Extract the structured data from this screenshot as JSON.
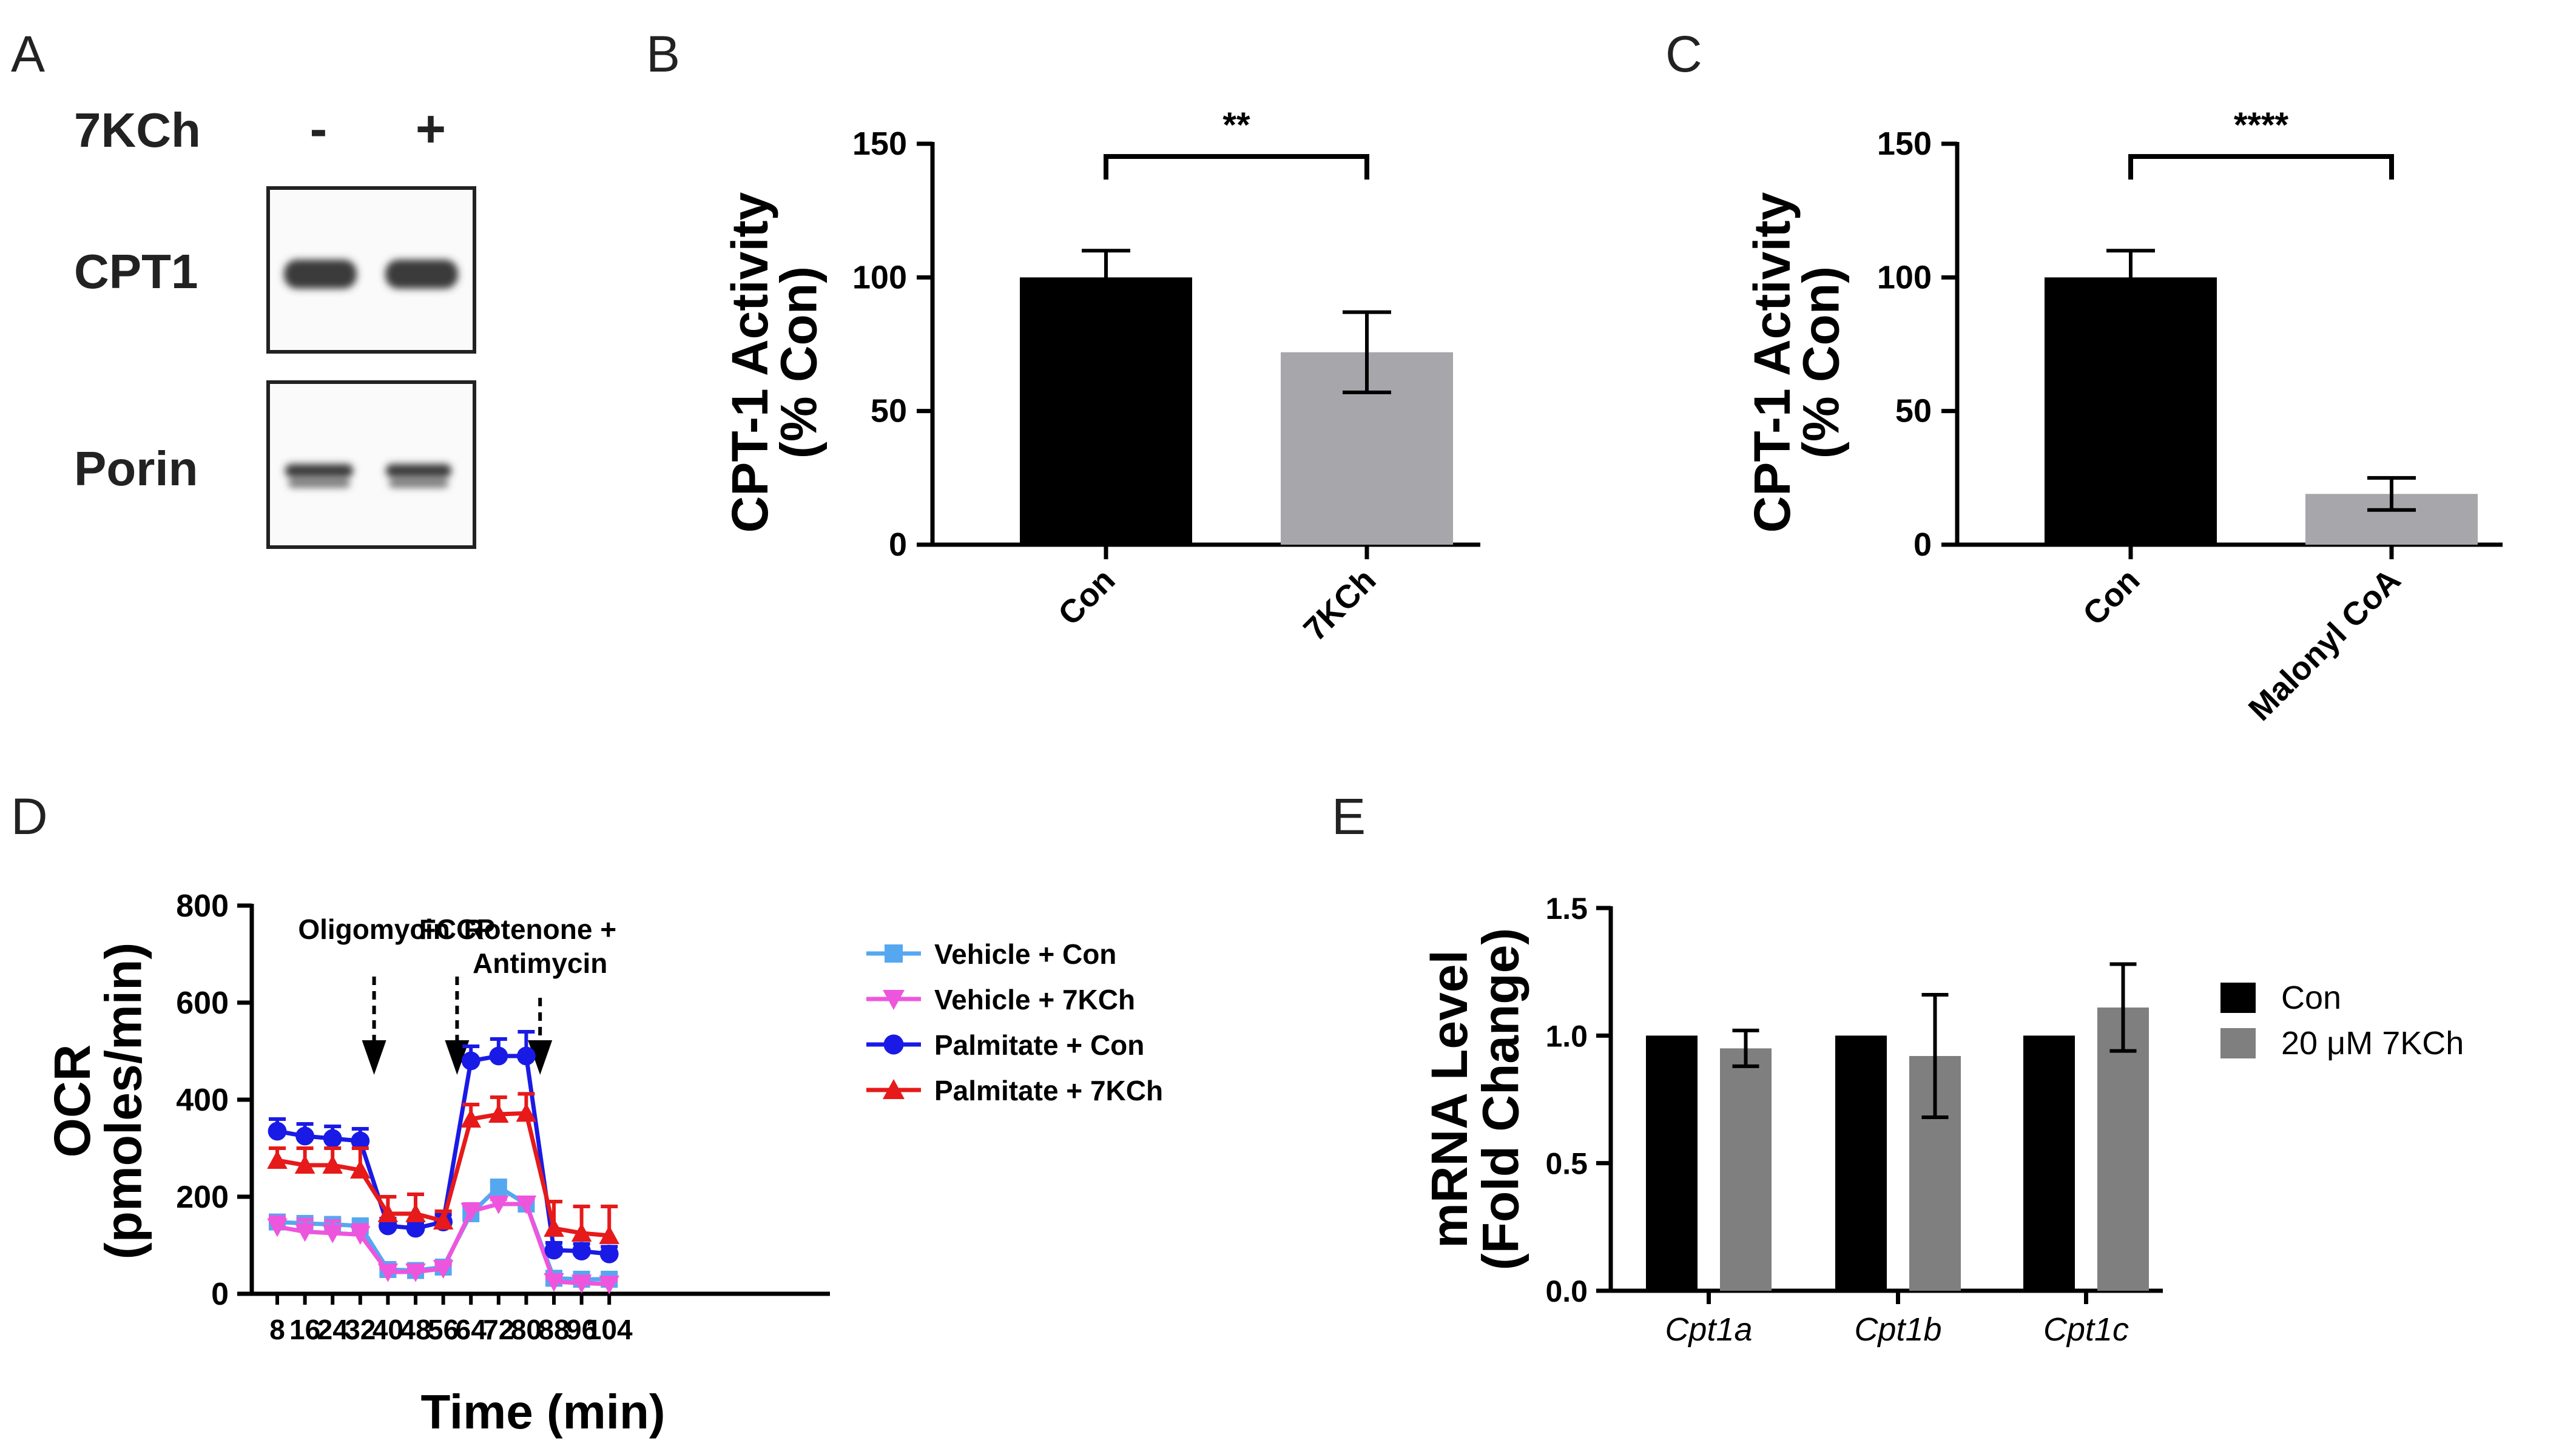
{
  "panel_labels": {
    "a": "A",
    "b": "B",
    "c": "C",
    "d": "D",
    "e": "E"
  },
  "western_blot": {
    "treatment_label": "7KCh",
    "minus": "-",
    "plus": "+",
    "rows": [
      "CPT1",
      "Porin"
    ]
  },
  "colors": {
    "black_bar": "#000000",
    "gray_bar": "#a7a7ab",
    "e_gray": "#7f7f7f",
    "vehicle_con": "#55a8f0",
    "vehicle_7kch": "#ee55dd",
    "palmitate_con": "#1a1ae6",
    "palmitate_7kch": "#e61a1a"
  },
  "chart_data": [
    {
      "id": "B",
      "type": "bar",
      "ylabel_line1": "CPT-1 Activity",
      "ylabel_line2": "(% Con)",
      "categories": [
        "Con",
        "7KCh"
      ],
      "values": [
        100,
        72
      ],
      "errors": [
        10,
        15
      ],
      "ylim": [
        0,
        150
      ],
      "yticks": [
        "0",
        "50",
        "100",
        "150"
      ],
      "significance": "**"
    },
    {
      "id": "C",
      "type": "bar",
      "ylabel_line1": "CPT-1 Activity",
      "ylabel_line2": "(% Con)",
      "categories": [
        "Con",
        "Malonyl CoA"
      ],
      "values": [
        100,
        19
      ],
      "errors": [
        10,
        6
      ],
      "ylim": [
        0,
        150
      ],
      "yticks": [
        "0",
        "50",
        "100",
        "150"
      ],
      "significance": "****"
    },
    {
      "id": "D",
      "type": "line",
      "xlabel": "Time (min)",
      "ylabel_line1": "OCR",
      "ylabel_line2": "(pmoles/min)",
      "x": [
        8,
        16,
        24,
        32,
        40,
        48,
        56,
        64,
        72,
        80,
        88,
        96,
        104
      ],
      "xticks": [
        "8",
        "16",
        "24",
        "32",
        "40",
        "48",
        "56",
        "64",
        "72",
        "80",
        "88",
        "96",
        "104"
      ],
      "ylim": [
        0,
        800
      ],
      "yticks": [
        "0",
        "200",
        "400",
        "600",
        "800"
      ],
      "series": [
        {
          "name": "Vehicle + Con",
          "marker": "square",
          "values": [
            148,
            145,
            143,
            140,
            50,
            48,
            55,
            165,
            220,
            185,
            32,
            30,
            30
          ],
          "errors": [
            10,
            10,
            10,
            10,
            8,
            8,
            8,
            15,
            10,
            10,
            8,
            8,
            8
          ]
        },
        {
          "name": "Vehicle + 7KCh",
          "marker": "tri-down",
          "values": [
            138,
            128,
            125,
            122,
            45,
            45,
            52,
            170,
            185,
            185,
            25,
            22,
            20
          ],
          "errors": [
            20,
            25,
            25,
            20,
            8,
            8,
            8,
            15,
            10,
            10,
            8,
            8,
            8
          ]
        },
        {
          "name": "Palmitate + Con",
          "marker": "circle",
          "values": [
            335,
            325,
            320,
            315,
            140,
            135,
            148,
            480,
            490,
            490,
            90,
            88,
            82
          ],
          "errors": [
            25,
            25,
            25,
            25,
            15,
            10,
            15,
            30,
            35,
            50,
            15,
            15,
            15
          ]
        },
        {
          "name": "Palmitate + 7KCh",
          "marker": "tri-up",
          "values": [
            275,
            265,
            265,
            255,
            165,
            165,
            150,
            360,
            370,
            372,
            135,
            125,
            120
          ],
          "errors": [
            25,
            35,
            35,
            45,
            35,
            40,
            20,
            30,
            35,
            40,
            55,
            55,
            60
          ]
        }
      ],
      "annotations": [
        {
          "lines": [
            "Oligomycin"
          ],
          "x": 36
        },
        {
          "lines": [
            "FCCP"
          ],
          "x": 60
        },
        {
          "lines": [
            "Rotenone +",
            "Antimycin"
          ],
          "x": 84
        }
      ]
    },
    {
      "id": "E",
      "type": "bar",
      "ylabel_line1": "mRNA Level",
      "ylabel_line2": "(Fold Change)",
      "categories": [
        "Cpt1a",
        "Cpt1b",
        "Cpt1c"
      ],
      "series": [
        {
          "name": "Con",
          "values": [
            1.0,
            1.0,
            1.0
          ],
          "errors": [
            0,
            0,
            0
          ]
        },
        {
          "name_prefix": "20 ",
          "name_unit": "μ",
          "name_suffix": "M 7KCh",
          "values": [
            0.95,
            0.92,
            1.11
          ],
          "errors": [
            0.07,
            0.24,
            0.17
          ]
        }
      ],
      "ylim": [
        0,
        1.5
      ],
      "yticks": [
        "0.0",
        "0.5",
        "1.0",
        "1.5"
      ]
    }
  ]
}
